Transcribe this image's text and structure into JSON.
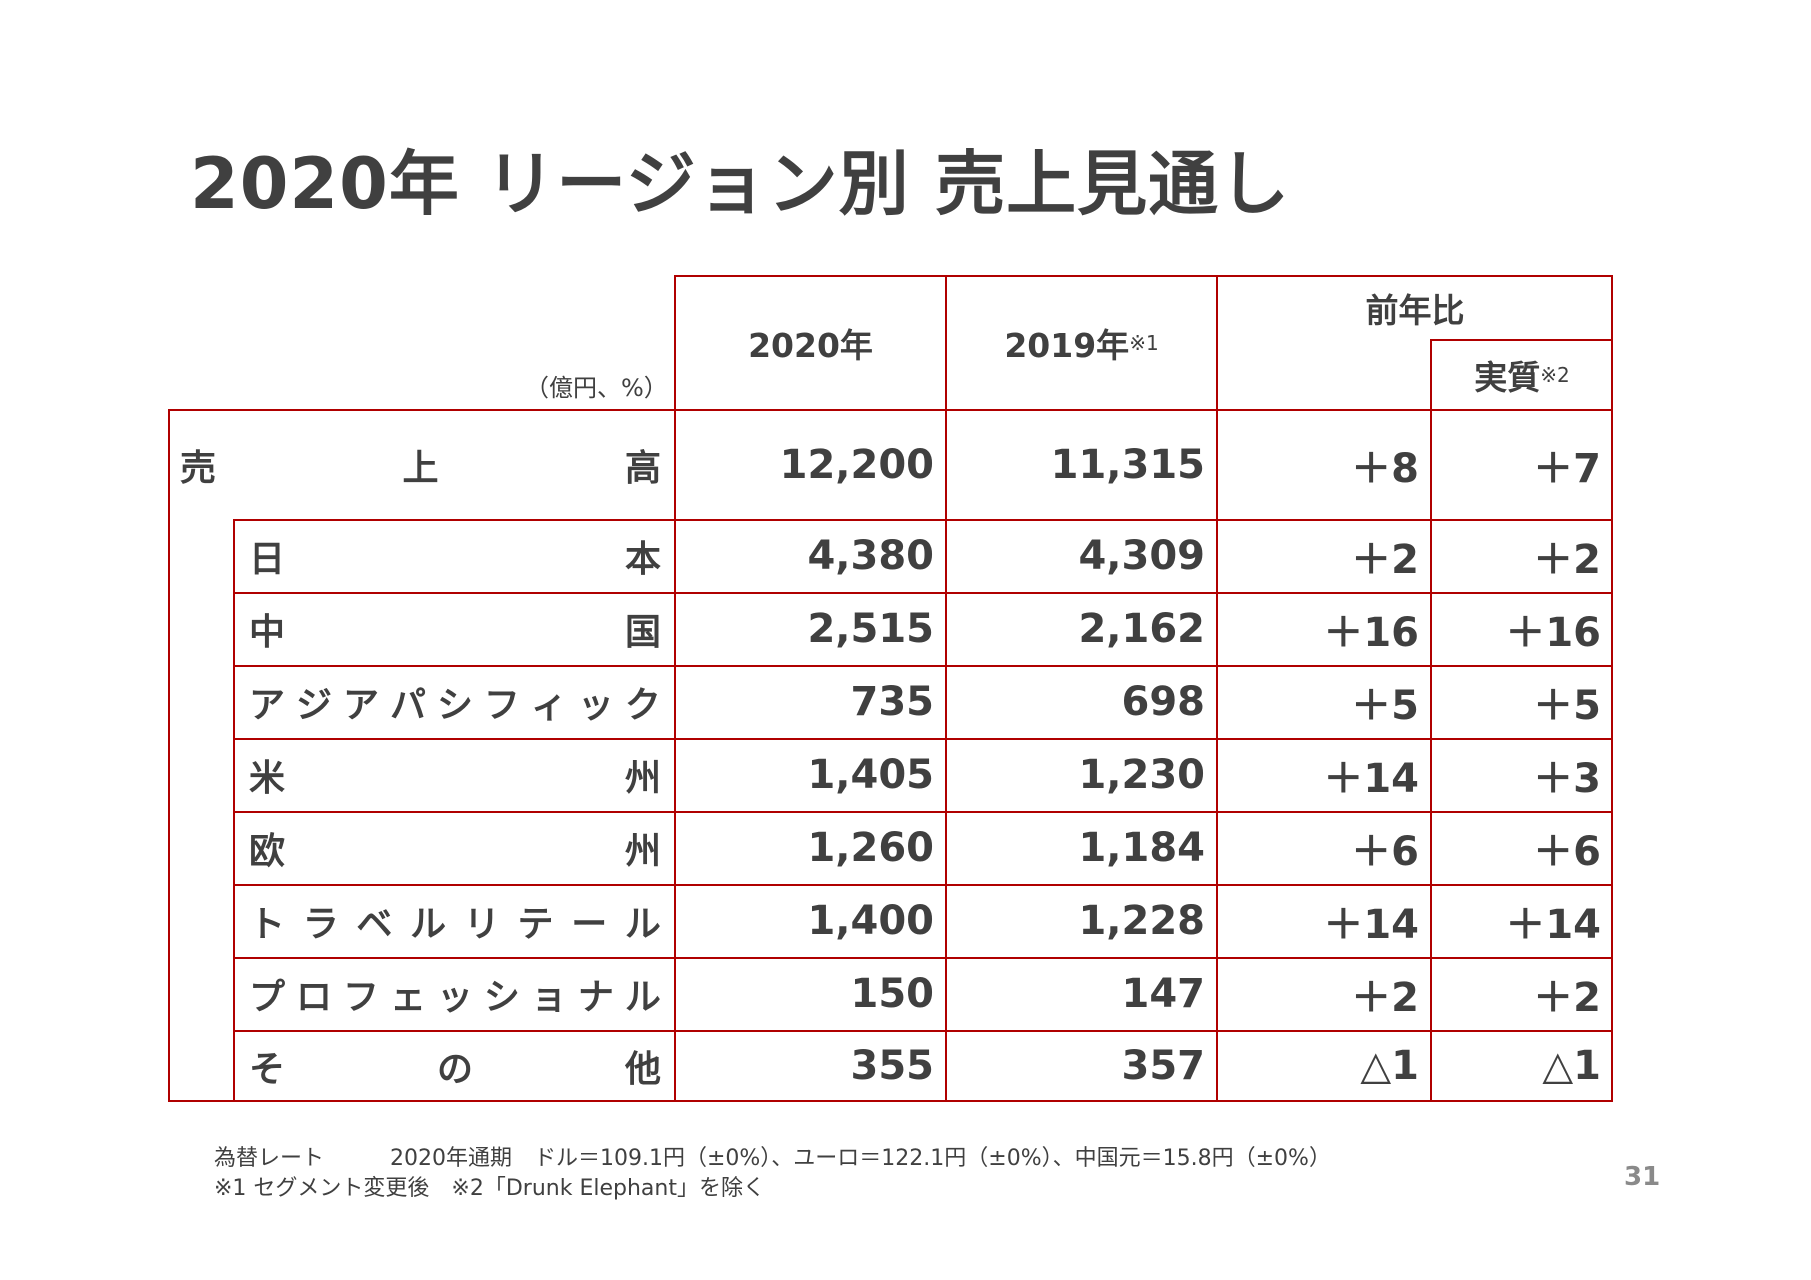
{
  "title": "2020年 リージョン別 売上見通し",
  "unit_note": "（億円、%）",
  "headers": {
    "col_2020": "2020年",
    "col_2019": "2019年",
    "col_2019_note": "※1",
    "col_yoy": "前年比",
    "col_real": "実質",
    "col_real_note": "※2"
  },
  "rows": [
    {
      "label_chars": [
        "売",
        "上",
        "高"
      ],
      "v2020": "12,200",
      "v2019": "11,315",
      "yoy": "＋8",
      "real": "＋7"
    },
    {
      "label_chars": [
        "日",
        "本"
      ],
      "v2020": "4,380",
      "v2019": "4,309",
      "yoy": "＋2",
      "real": "＋2"
    },
    {
      "label_chars": [
        "中",
        "国"
      ],
      "v2020": "2,515",
      "v2019": "2,162",
      "yoy": "＋16",
      "real": "＋16"
    },
    {
      "label_chars": [
        "ア",
        "ジ",
        "ア",
        "パ",
        "シ",
        "フ",
        "ィ",
        "ッ",
        "ク"
      ],
      "v2020": "735",
      "v2019": "698",
      "yoy": "＋5",
      "real": "＋5"
    },
    {
      "label_chars": [
        "米",
        "州"
      ],
      "v2020": "1,405",
      "v2019": "1,230",
      "yoy": "＋14",
      "real": "＋3"
    },
    {
      "label_chars": [
        "欧",
        "州"
      ],
      "v2020": "1,260",
      "v2019": "1,184",
      "yoy": "＋6",
      "real": "＋6"
    },
    {
      "label_chars": [
        "ト",
        "ラ",
        "ベ",
        "ル",
        "リ",
        "テ",
        "ー",
        "ル"
      ],
      "v2020": "1,400",
      "v2019": "1,228",
      "yoy": "＋14",
      "real": "＋14"
    },
    {
      "label_chars": [
        "プ",
        "ロ",
        "フ",
        "ェ",
        "ッ",
        "シ",
        "ョ",
        "ナ",
        "ル"
      ],
      "v2020": "150",
      "v2019": "147",
      "yoy": "＋2",
      "real": "＋2"
    },
    {
      "label_chars": [
        "そ",
        "の",
        "他"
      ],
      "v2020": "355",
      "v2019": "357",
      "yoy": "△1",
      "real": "△1"
    }
  ],
  "footnotes": {
    "line1": "為替レート　　　2020年通期　ドル＝109.1円（±0%）、ユーロ＝122.1円（±0%）、中国元＝15.8円（±0%）",
    "line2": "※1 セグメント変更後　※2「Drunk Elephant」を除く"
  },
  "page_number": "31",
  "colors": {
    "border": "#b00000",
    "text": "#404040",
    "page_number": "#8a8a8a"
  }
}
